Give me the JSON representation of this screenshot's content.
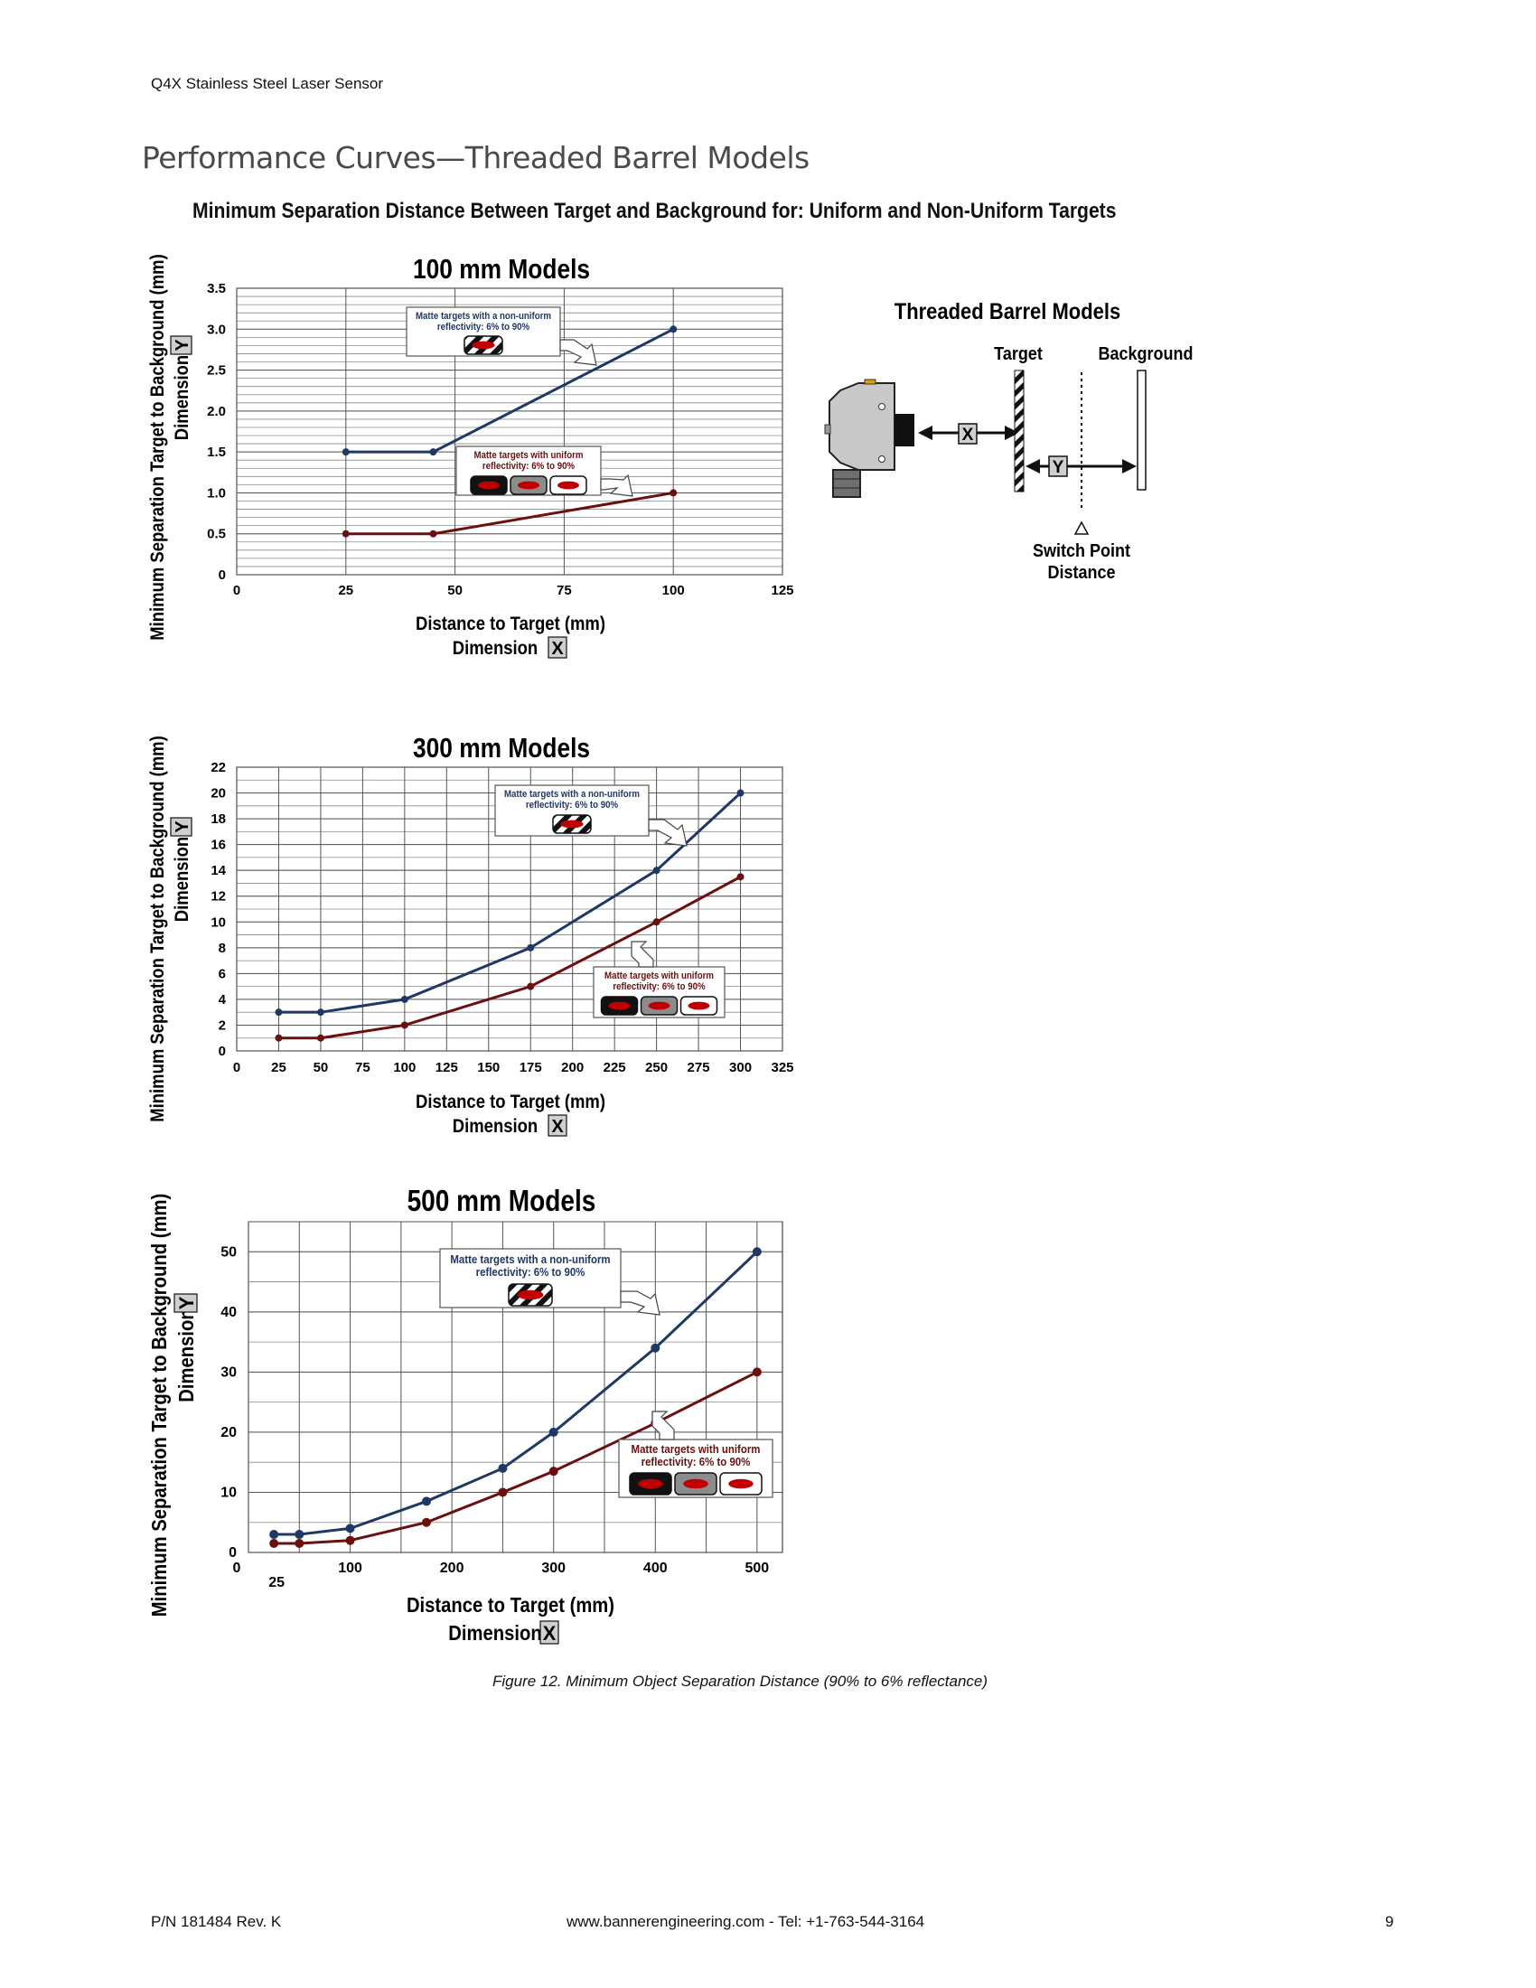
{
  "page": {
    "header": "Q4X Stainless Steel Laser Sensor",
    "section_title": "Performance Curves—Threaded Barrel Models",
    "figure_heading": "Minimum Separation Distance Between Target and Background for: Uniform and Non-Uniform Targets",
    "caption": "Figure 12. Minimum Object Separation Distance (90% to 6% reflectance)",
    "footer": {
      "part_number": "P/N 181484 Rev. K",
      "contact": "www.bannerengineering.com - Tel: +1-763-544-3164",
      "page_number": "9"
    }
  },
  "labels": {
    "y_axis_line1": "Minimum Separation Target to Background (mm)",
    "y_axis_line2": "Dimension",
    "x_axis_line1": "Distance to Target (mm)",
    "x_axis_line2": "Dimension",
    "x_box": "X",
    "y_box": "Y",
    "nonuniform_line1": "Matte targets with a non-uniform",
    "nonuniform_line2": "reflectivity: 6% to 90%",
    "uniform_line1": "Matte targets with uniform",
    "uniform_line2": "reflectivity: 6% to 90%"
  },
  "diagram": {
    "title": "Threaded Barrel Models",
    "target_label": "Target",
    "background_label": "Background",
    "x_label": "X",
    "y_label": "Y",
    "switch_point_line1": "Switch Point",
    "switch_point_line2": "Distance"
  },
  "colors": {
    "nonuniform_series": "#1f3864",
    "uniform_series": "#6b0f0f",
    "grid": "#8a8a8a",
    "label_box": "#cfcfcf"
  },
  "chart_data": [
    {
      "type": "line",
      "title": "100 mm Models",
      "xlabel": "Distance to Target (mm)",
      "ylabel": "Minimum Separation Target to Background (mm)",
      "xlim": [
        0,
        125
      ],
      "ylim": [
        0,
        3.5
      ],
      "x_ticks": [
        "0",
        "25",
        "50",
        "75",
        "100",
        "125"
      ],
      "y_ticks": [
        "0",
        "0.5",
        "1.0",
        "1.5",
        "2.0",
        "2.5",
        "3.0",
        "3.5"
      ],
      "grid": true,
      "series": [
        {
          "name": "Matte targets with a non-uniform reflectivity: 6% to 90%",
          "x": [
            25,
            45,
            100
          ],
          "y": [
            1.5,
            1.5,
            3.0
          ]
        },
        {
          "name": "Matte targets with uniform reflectivity: 6% to 90%",
          "x": [
            25,
            45,
            100
          ],
          "y": [
            0.5,
            0.5,
            1.0
          ]
        }
      ]
    },
    {
      "type": "line",
      "title": "300 mm Models",
      "xlabel": "Distance to Target (mm)",
      "ylabel": "Minimum Separation Target to Background (mm)",
      "xlim": [
        0,
        325
      ],
      "ylim": [
        0,
        22
      ],
      "x_ticks": [
        "0",
        "25",
        "50",
        "75",
        "100",
        "125",
        "150",
        "175",
        "200",
        "225",
        "250",
        "275",
        "300",
        "325"
      ],
      "y_ticks": [
        "0",
        "2",
        "4",
        "6",
        "8",
        "10",
        "12",
        "14",
        "16",
        "18",
        "20",
        "22"
      ],
      "grid": true,
      "series": [
        {
          "name": "Matte targets with a non-uniform reflectivity: 6% to 90%",
          "x": [
            25,
            50,
            100,
            175,
            250,
            300
          ],
          "y": [
            3,
            3,
            4,
            8,
            14,
            20
          ]
        },
        {
          "name": "Matte targets with uniform reflectivity: 6% to 90%",
          "x": [
            25,
            50,
            100,
            175,
            250,
            300
          ],
          "y": [
            1,
            1,
            2,
            5,
            10,
            13.5
          ]
        }
      ]
    },
    {
      "type": "line",
      "title": "500 mm Models",
      "xlabel": "Distance to Target (mm)",
      "ylabel": "Minimum Separation Target to Background (mm)",
      "xlim": [
        0,
        525
      ],
      "ylim": [
        0,
        55
      ],
      "x_ticks": [
        "0",
        "25",
        "100",
        "200",
        "300",
        "400",
        "500"
      ],
      "y_ticks": [
        "0",
        "10",
        "20",
        "30",
        "40",
        "50"
      ],
      "grid": true,
      "series": [
        {
          "name": "Matte targets with a non-uniform reflectivity: 6% to 90%",
          "x": [
            25,
            50,
            100,
            175,
            250,
            300,
            400,
            500
          ],
          "y": [
            3,
            3,
            4,
            8.5,
            14,
            20,
            34,
            50
          ]
        },
        {
          "name": "Matte targets with uniform reflectivity: 6% to 90%",
          "x": [
            25,
            50,
            100,
            175,
            250,
            300,
            400,
            500
          ],
          "y": [
            1.5,
            1.5,
            2,
            5,
            10,
            13.5,
            21.5,
            30
          ]
        }
      ]
    }
  ]
}
